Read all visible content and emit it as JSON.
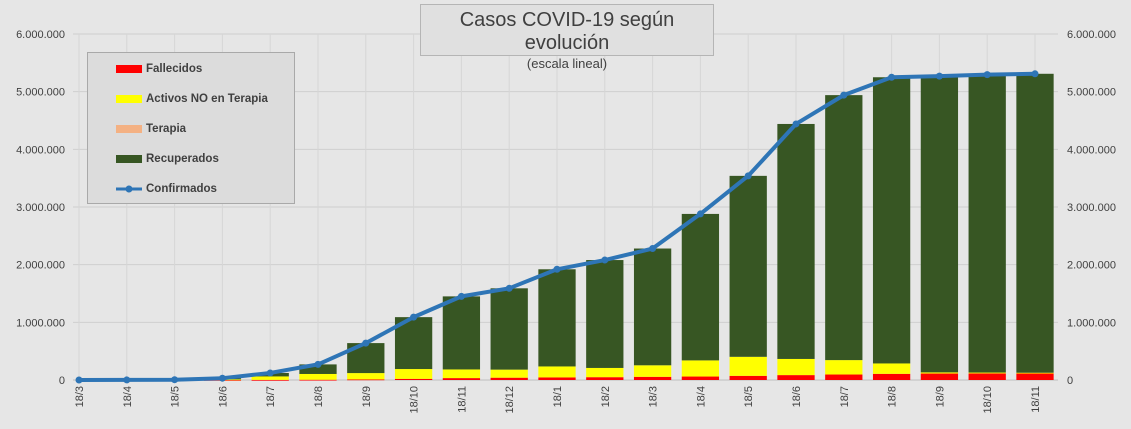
{
  "chart_data": {
    "type": "area",
    "title": "Casos COVID-19 según evolución",
    "subtitle": "(escala lineal)",
    "x_tick_labels": [
      "18/3",
      "18/4",
      "18/5",
      "18/6",
      "18/7",
      "18/8",
      "18/9",
      "18/10",
      "18/11",
      "18/12",
      "18/1",
      "18/2",
      "18/3",
      "18/4",
      "18/5",
      "18/6",
      "18/7",
      "18/8",
      "18/9",
      "18/10",
      "18/11"
    ],
    "y_tick_labels": [
      "0",
      "1.000.000",
      "2.000.000",
      "3.000.000",
      "4.000.000",
      "5.000.000",
      "6.000.000"
    ],
    "ylim": [
      0,
      6000000
    ],
    "y_axes": [
      "left",
      "right"
    ],
    "grid": true,
    "legend_position": "top-left",
    "series": [
      {
        "name": "Fallecidos",
        "kind": "stacked-bar",
        "color": "#ff0000",
        "values": [
          0,
          100,
          400,
          1000,
          2000,
          4500,
          10000,
          20000,
          33000,
          40000,
          45000,
          49000,
          55000,
          60000,
          72000,
          85000,
          95000,
          107000,
          112000,
          114000,
          116000
        ]
      },
      {
        "name": "Activos NO en Terapia",
        "kind": "stacked-bar",
        "color": "#ffff00",
        "values": [
          0,
          1000,
          3000,
          10000,
          60000,
          100000,
          110000,
          170000,
          150000,
          140000,
          190000,
          160000,
          200000,
          280000,
          330000,
          280000,
          250000,
          180000,
          20000,
          15000,
          10000
        ]
      },
      {
        "name": "Terapia",
        "kind": "stacked-bar",
        "color": "#f4b183",
        "values": [
          0,
          0,
          0,
          0,
          0,
          0,
          0,
          0,
          0,
          0,
          0,
          0,
          0,
          0,
          0,
          0,
          0,
          0,
          0,
          0,
          0
        ]
      },
      {
        "name": "Recuperados",
        "kind": "stacked-bar",
        "color": "#375623",
        "values": [
          0,
          0,
          2000,
          20000,
          60000,
          166000,
          520000,
          900000,
          1267000,
          1410000,
          1685000,
          1871000,
          2025000,
          2540000,
          3138000,
          4075000,
          4595000,
          4963000,
          5138000,
          5166000,
          5184000
        ]
      },
      {
        "name": "Confirmados",
        "kind": "line",
        "color": "#2e75b6",
        "values": [
          0,
          1100,
          5400,
          31000,
          122000,
          270500,
          640000,
          1090000,
          1450000,
          1590000,
          1920000,
          2080000,
          2280000,
          2880000,
          3540000,
          4440000,
          4940000,
          5250000,
          5270000,
          5295000,
          5310000
        ]
      }
    ]
  }
}
